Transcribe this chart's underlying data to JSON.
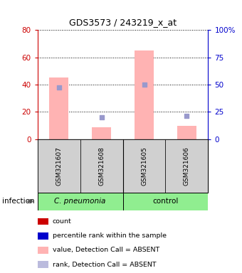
{
  "title": "GDS3573 / 243219_x_at",
  "samples": [
    "GSM321607",
    "GSM321608",
    "GSM321605",
    "GSM321606"
  ],
  "bar_values_pink": [
    45,
    9,
    65,
    10
  ],
  "dot_values_blue": [
    38,
    16,
    40,
    17
  ],
  "left_ylim": [
    0,
    80
  ],
  "right_ylim": [
    0,
    100
  ],
  "left_yticks": [
    0,
    20,
    40,
    60,
    80
  ],
  "right_yticks": [
    0,
    25,
    50,
    75,
    100
  ],
  "right_yticklabels": [
    "0",
    "25",
    "50",
    "75",
    "100%"
  ],
  "left_tick_color": "#cc0000",
  "right_tick_color": "#0000cc",
  "bar_color_pink": "#ffb3b3",
  "dot_color_blue": "#9999cc",
  "infection_label": "infection",
  "group_label_1": "C. pneumonia",
  "group_label_2": "control",
  "group_bg_color": "#90ee90",
  "sample_bg_color": "#d0d0d0",
  "legend_items": [
    {
      "label": "count",
      "color": "#cc0000"
    },
    {
      "label": "percentile rank within the sample",
      "color": "#0000cc"
    },
    {
      "label": "value, Detection Call = ABSENT",
      "color": "#ffb3b3"
    },
    {
      "label": "rank, Detection Call = ABSENT",
      "color": "#bbbbdd"
    }
  ],
  "fig_width": 3.4,
  "fig_height": 3.84,
  "dpi": 100
}
